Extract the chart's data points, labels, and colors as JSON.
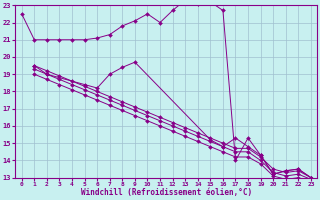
{
  "bg_color": "#c8f0f0",
  "grid_color": "#a0c0d0",
  "line_color": "#880088",
  "marker_color": "#880088",
  "xlabel": "Windchill (Refroidissement éolien,°C)",
  "xlabel_color": "#880088",
  "xtick_color": "#880088",
  "ytick_color": "#880088",
  "xlim": [
    -0.5,
    23.5
  ],
  "ylim": [
    13,
    23
  ],
  "xticks": [
    0,
    1,
    2,
    3,
    4,
    5,
    6,
    7,
    8,
    9,
    10,
    11,
    12,
    13,
    14,
    15,
    16,
    17,
    18,
    19,
    20,
    21,
    22,
    23
  ],
  "yticks": [
    13,
    14,
    15,
    16,
    17,
    18,
    19,
    20,
    21,
    22,
    23
  ],
  "lines": [
    {
      "x": [
        0,
        1,
        2,
        3,
        4,
        5,
        6,
        7,
        8,
        9,
        10,
        11,
        12,
        13,
        14,
        15,
        16,
        17,
        18,
        19,
        20,
        21,
        22,
        23
      ],
      "y": [
        22.5,
        21.0,
        21.0,
        21.0,
        21.0,
        21.0,
        21.1,
        21.3,
        21.8,
        22.1,
        22.5,
        22.0,
        22.7,
        23.3,
        23.1,
        23.2,
        22.7,
        14.0,
        15.3,
        14.3,
        13.2,
        13.4,
        13.5,
        13.0
      ]
    },
    {
      "x": [
        1,
        2,
        3,
        4,
        5,
        6,
        7,
        8,
        9,
        10,
        11,
        12,
        13,
        14,
        15,
        16,
        17,
        18,
        19,
        20,
        21,
        22,
        23
      ],
      "y": [
        19.5,
        19.2,
        18.9,
        18.6,
        18.3,
        18.0,
        17.7,
        17.4,
        17.1,
        16.8,
        16.5,
        16.2,
        15.9,
        15.6,
        15.3,
        15.0,
        14.7,
        14.7,
        14.2,
        13.5,
        13.3,
        13.4,
        13.0
      ]
    },
    {
      "x": [
        1,
        2,
        3,
        4,
        5,
        6,
        7,
        8,
        9,
        10,
        11,
        12,
        13,
        14,
        15,
        16,
        17,
        18,
        19,
        20,
        21,
        22,
        23
      ],
      "y": [
        19.3,
        19.0,
        18.7,
        18.4,
        18.1,
        17.8,
        17.5,
        17.2,
        16.9,
        16.6,
        16.3,
        16.0,
        15.7,
        15.4,
        15.1,
        14.8,
        14.5,
        14.5,
        14.0,
        13.3,
        13.1,
        13.2,
        12.9
      ]
    },
    {
      "x": [
        1,
        2,
        3,
        4,
        5,
        6,
        7,
        8,
        9,
        10,
        11,
        12,
        13,
        14,
        15,
        16,
        17,
        18,
        19,
        20,
        21,
        22,
        23
      ],
      "y": [
        19.0,
        18.7,
        18.4,
        18.1,
        17.8,
        17.5,
        17.2,
        16.9,
        16.6,
        16.3,
        16.0,
        15.7,
        15.4,
        15.1,
        14.8,
        14.5,
        14.2,
        14.2,
        13.8,
        13.1,
        12.9,
        13.0,
        12.8
      ]
    },
    {
      "x": [
        1,
        2,
        5,
        6,
        7,
        8,
        9,
        15,
        16,
        17,
        18,
        19,
        20,
        21,
        22,
        23
      ],
      "y": [
        19.5,
        19.0,
        18.4,
        18.2,
        19.0,
        19.4,
        19.7,
        15.2,
        14.8,
        15.3,
        14.8,
        14.3,
        13.2,
        13.4,
        13.5,
        13.0
      ]
    }
  ]
}
